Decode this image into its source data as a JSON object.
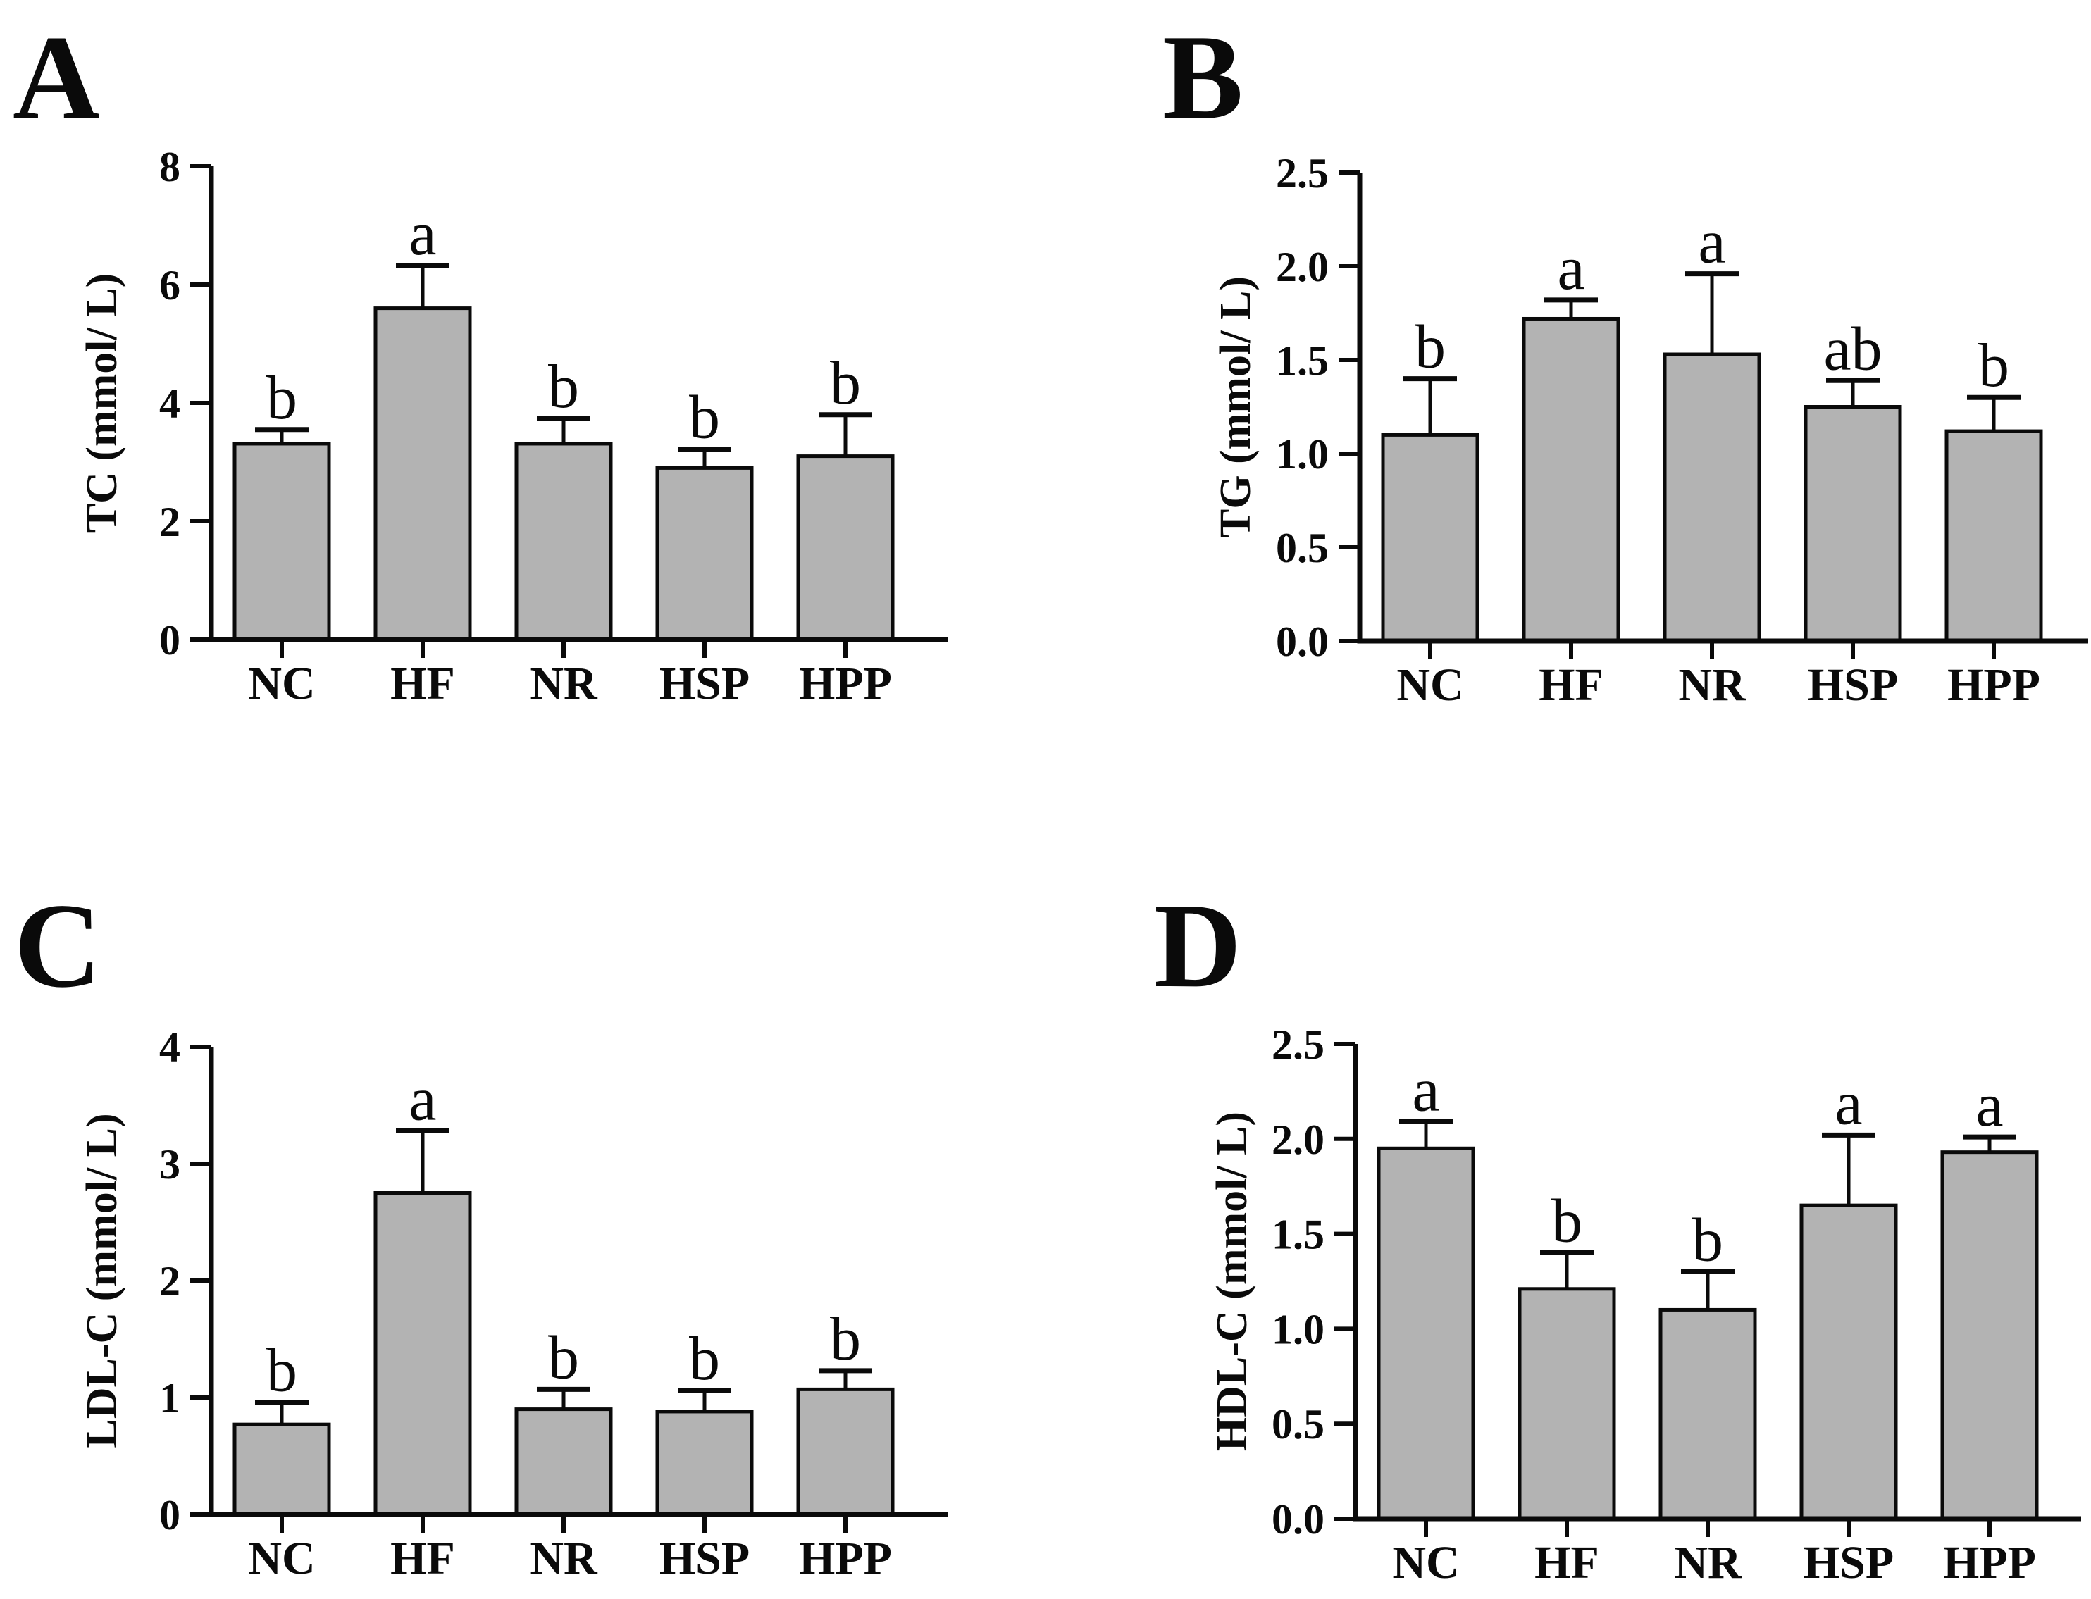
{
  "figure": {
    "description": "Four-panel bar chart figure of serum lipid measurements with significance letters",
    "groups": [
      "NC",
      "HF",
      "NR",
      "HSP",
      "HPP"
    ],
    "bar_fill_color": "#b3b3b3",
    "bar_border_color": "#0a0a0a",
    "axis_color": "#0a0a0a"
  },
  "chart_data": [
    {
      "id": "A",
      "panel_letter": "A",
      "type": "bar",
      "title": "",
      "xlabel": "",
      "ylabel": "TC (mmol/ L)",
      "categories": [
        "NC",
        "HF",
        "NR",
        "HSP",
        "HPP"
      ],
      "values": [
        3.31,
        5.6,
        3.31,
        2.9,
        3.1
      ],
      "errors_up": [
        0.24,
        0.72,
        0.43,
        0.32,
        0.7
      ],
      "sig_letters": [
        "b",
        "a",
        "b",
        "b",
        "b"
      ],
      "ylim": [
        0,
        8
      ],
      "yticks": [
        0,
        2,
        4,
        6,
        8
      ],
      "ytick_labels": [
        "0",
        "2",
        "4",
        "6",
        "8"
      ],
      "grid": "off",
      "legend": "none"
    },
    {
      "id": "B",
      "panel_letter": "B",
      "type": "bar",
      "title": "",
      "xlabel": "",
      "ylabel": "TG (mmol/ L)",
      "categories": [
        "NC",
        "HF",
        "NR",
        "HSP",
        "HPP"
      ],
      "values": [
        1.1,
        1.72,
        1.53,
        1.25,
        1.12
      ],
      "errors_up": [
        0.3,
        0.1,
        0.43,
        0.14,
        0.18
      ],
      "sig_letters": [
        "b",
        "a",
        "a",
        "ab",
        "b"
      ],
      "ylim": [
        0,
        2.5
      ],
      "yticks": [
        0,
        0.5,
        1.0,
        1.5,
        2.0,
        2.5
      ],
      "ytick_labels": [
        "0.0",
        "0.5",
        "1.0",
        "1.5",
        "2.0",
        "2.5"
      ],
      "grid": "off",
      "legend": "none"
    },
    {
      "id": "C",
      "panel_letter": "C",
      "type": "bar",
      "title": "",
      "xlabel": "",
      "ylabel": "LDL-C (mmol/ L)",
      "categories": [
        "NC",
        "HF",
        "NR",
        "HSP",
        "HPP"
      ],
      "values": [
        0.77,
        2.75,
        0.9,
        0.88,
        1.07
      ],
      "errors_up": [
        0.19,
        0.53,
        0.17,
        0.18,
        0.16
      ],
      "sig_letters": [
        "b",
        "a",
        "b",
        "b",
        "b"
      ],
      "ylim": [
        0,
        4
      ],
      "yticks": [
        0,
        1,
        2,
        3,
        4
      ],
      "ytick_labels": [
        "0",
        "1",
        "2",
        "3",
        "4"
      ],
      "grid": "off",
      "legend": "none"
    },
    {
      "id": "D",
      "panel_letter": "D",
      "type": "bar",
      "title": "",
      "xlabel": "",
      "ylabel": "HDL-C (mmol/ L)",
      "categories": [
        "NC",
        "HF",
        "NR",
        "HSP",
        "HPP"
      ],
      "values": [
        1.95,
        1.21,
        1.1,
        1.65,
        1.93
      ],
      "errors_up": [
        0.14,
        0.19,
        0.2,
        0.37,
        0.08
      ],
      "sig_letters": [
        "a",
        "b",
        "b",
        "a",
        "a"
      ],
      "ylim": [
        0,
        2.5
      ],
      "yticks": [
        0,
        0.5,
        1.0,
        1.5,
        2.0,
        2.5
      ],
      "ytick_labels": [
        "0.0",
        "0.5",
        "1.0",
        "1.5",
        "2.0",
        "2.5"
      ],
      "grid": "off",
      "legend": "none"
    }
  ]
}
